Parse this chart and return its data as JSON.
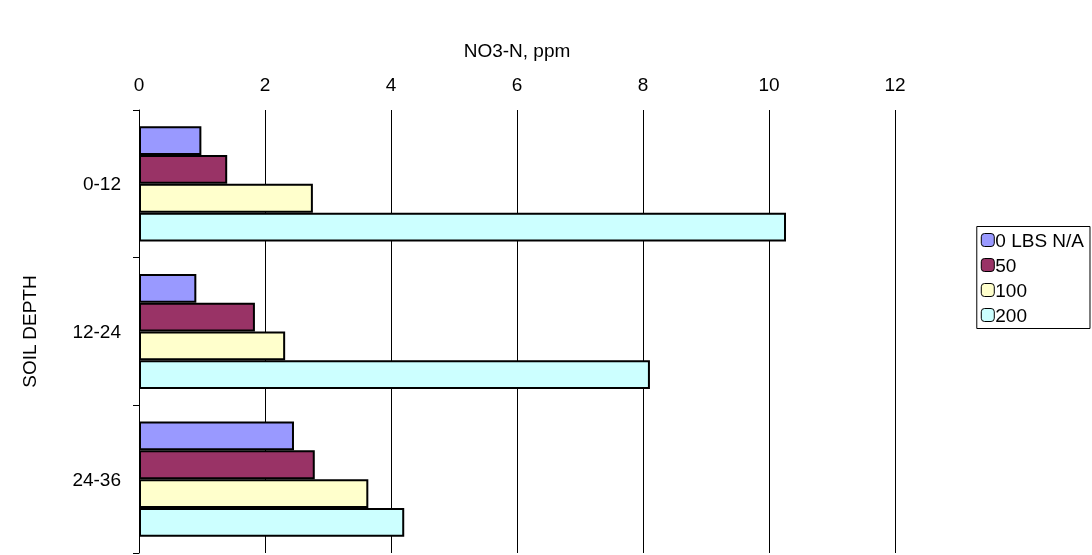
{
  "chart_data": {
    "type": "bar",
    "orientation": "horizontal",
    "xlabel": "NO3-N, ppm",
    "ylabel": "SOIL DEPTH",
    "categories": [
      "0-12",
      "12-24",
      "24-36"
    ],
    "series": [
      {
        "name": "0 LBS N/A",
        "color": "#9999ff",
        "values": [
          0.99,
          0.91,
          2.46
        ]
      },
      {
        "name": "50",
        "color": "#993366",
        "values": [
          1.4,
          1.84,
          2.79
        ]
      },
      {
        "name": "100",
        "color": "#ffffcc",
        "values": [
          2.76,
          2.32,
          3.64
        ]
      },
      {
        "name": "200",
        "color": "#ccffff",
        "values": [
          10.27,
          8.11,
          4.21
        ]
      }
    ],
    "xlim": [
      0,
      12
    ],
    "xticks": [
      0,
      2,
      4,
      6,
      8,
      10,
      12
    ],
    "grid": "x",
    "legend": "right"
  }
}
